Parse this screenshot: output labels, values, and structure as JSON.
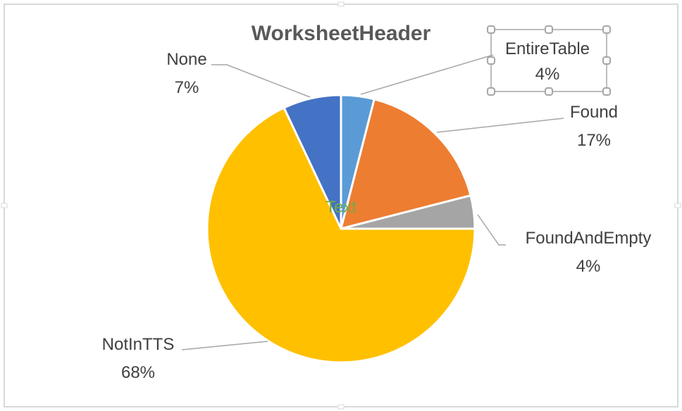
{
  "chart_data": {
    "type": "pie",
    "title": "WorksheetHeader",
    "center_text": "Text",
    "slices": [
      {
        "label": "EntireTable",
        "value": 4,
        "percent_label": "4%",
        "color": "#5b9bd5"
      },
      {
        "label": "Found",
        "value": 17,
        "percent_label": "17%",
        "color": "#ed7d31"
      },
      {
        "label": "FoundAndEmpty",
        "value": 4,
        "percent_label": "4%",
        "color": "#a5a5a5"
      },
      {
        "label": "NotInTTS",
        "value": 68,
        "percent_label": "68%",
        "color": "#ffc000"
      },
      {
        "label": "None",
        "value": 7,
        "percent_label": "7%",
        "color": "#4472c4"
      }
    ],
    "selected_label": "EntireTable",
    "legend": "none"
  }
}
